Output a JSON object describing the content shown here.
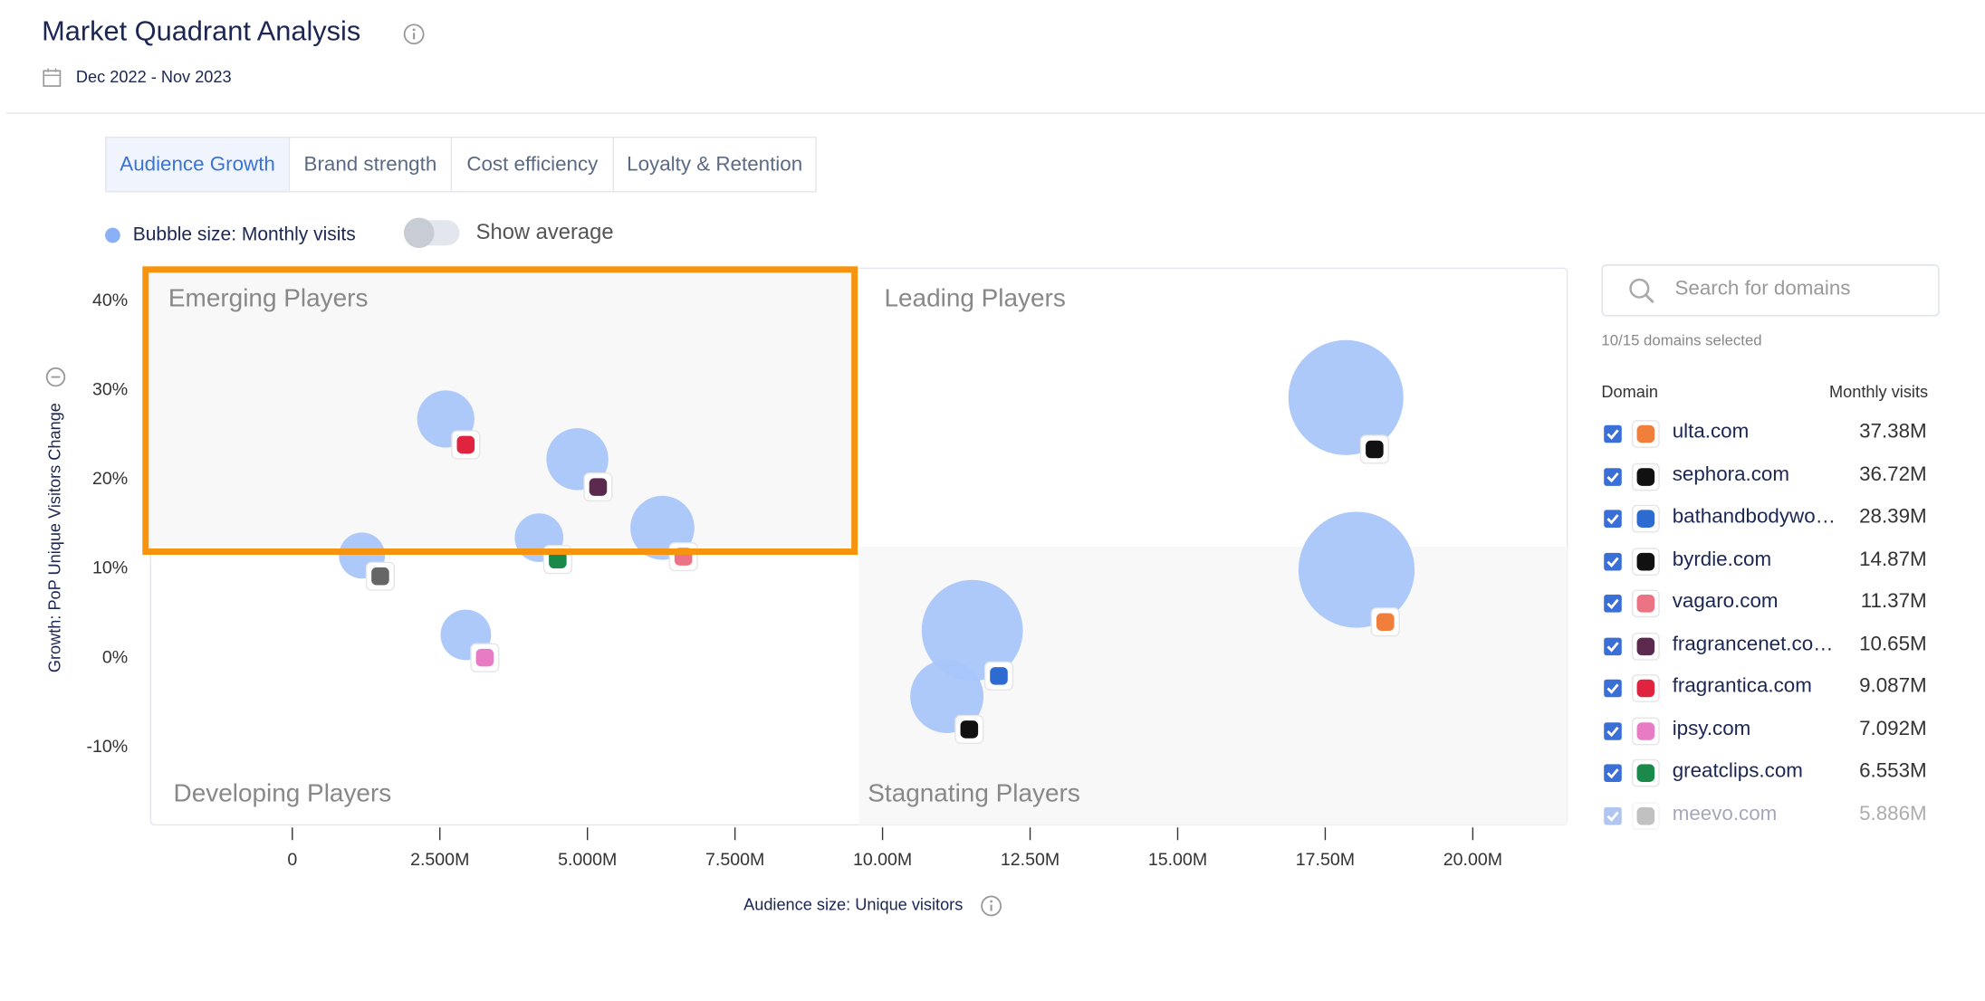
{
  "header": {
    "title": "Market Quadrant Analysis",
    "date_range": "Dec 2022 - Nov 2023"
  },
  "tabs": [
    "Audience Growth",
    "Brand strength",
    "Cost efficiency",
    "Loyalty & Retention"
  ],
  "legend": {
    "bubble": "Bubble size: Monthly visits",
    "toggle": "Show average"
  },
  "sidebar": {
    "search_placeholder": "Search for domains",
    "selection": "10/15 domains selected",
    "columns": [
      "Domain",
      "Monthly visits"
    ]
  },
  "chart_data": {
    "type": "bubble",
    "x_label": "Audience size: Unique visitors",
    "y_label": "Growth: PoP Unique Visitors Change",
    "color": "#a9c6fa",
    "xlim": [
      -2.4,
      21.6
    ],
    "ylim": [
      -18.7,
      43.7
    ],
    "xticks": [
      0,
      {
        "value": 2.5,
        "label": "2.500M"
      },
      {
        "value": 5,
        "label": "5.000M"
      },
      {
        "value": 7.5,
        "label": "7.500M"
      },
      {
        "value": 10,
        "label": "10.00M"
      },
      {
        "value": 12.5,
        "label": "12.50M"
      },
      {
        "value": 15,
        "label": "15.00M"
      },
      {
        "value": 17.5,
        "label": "17.50M"
      },
      {
        "value": 20,
        "label": "20.00M"
      }
    ],
    "yticks": [
      {
        "value": 40,
        "label": "40%"
      },
      {
        "value": 30,
        "label": "30%"
      },
      {
        "value": 20,
        "label": "20%"
      },
      {
        "value": 10,
        "label": "10%"
      },
      {
        "value": 0,
        "label": "0%"
      },
      {
        "value": -10,
        "label": "-10%"
      }
    ],
    "quadrant_x": 9.6,
    "quadrant_y": 12.5,
    "quadrants": [
      "Emerging Players",
      "Leading Players",
      "Developing Players",
      "Stagnating Players"
    ],
    "series": [
      {
        "name": "ulta.com",
        "icon_color": "#f07f3c",
        "x": [
          18.03
        ],
        "values": [
          9.9
        ],
        "sizes": [
          37.38
        ],
        "size_labels": [
          "37.38M"
        ]
      },
      {
        "name": "sephora.com",
        "icon_color": "#111111",
        "x": [
          17.85
        ],
        "values": [
          29.2
        ],
        "sizes": [
          36.72
        ],
        "size_labels": [
          "36.72M"
        ]
      },
      {
        "name": "bathandbodywo…",
        "icon_color": "#2d6bd1",
        "x": [
          11.52
        ],
        "values": [
          3.1
        ],
        "sizes": [
          28.39
        ],
        "size_labels": [
          "28.39M"
        ]
      },
      {
        "name": "byrdie.com",
        "icon_color": "#111111",
        "x": [
          11.09
        ],
        "values": [
          -4.3
        ],
        "sizes": [
          14.87
        ],
        "size_labels": [
          "14.87M"
        ]
      },
      {
        "name": "vagaro.com",
        "icon_color": "#ec7383",
        "x": [
          6.27
        ],
        "values": [
          14.6
        ],
        "sizes": [
          11.37
        ],
        "size_labels": [
          "11.37M"
        ]
      },
      {
        "name": "fragrancenet.co…",
        "icon_color": "#5c2a4f",
        "x": [
          4.83
        ],
        "values": [
          22.3
        ],
        "sizes": [
          10.65
        ],
        "size_labels": [
          "10.65M"
        ]
      },
      {
        "name": "fragrantica.com",
        "icon_color": "#e0243f",
        "x": [
          2.6
        ],
        "values": [
          26.8
        ],
        "sizes": [
          9.087
        ],
        "size_labels": [
          "9.087M"
        ]
      },
      {
        "name": "ipsy.com",
        "icon_color": "#e87bc4",
        "x": [
          2.94
        ],
        "values": [
          2.6
        ],
        "sizes": [
          7.092
        ],
        "size_labels": [
          "7.092M"
        ]
      },
      {
        "name": "greatclips.com",
        "icon_color": "#1a8a4a",
        "x": [
          4.18
        ],
        "values": [
          13.5
        ],
        "sizes": [
          6.553
        ],
        "size_labels": [
          "6.553M"
        ]
      },
      {
        "name": "meevo.com",
        "icon_color": "#666666",
        "x": [
          1.18
        ],
        "values": [
          11.5
        ],
        "sizes": [
          5.886
        ],
        "size_labels": [
          "5.886M"
        ]
      }
    ]
  }
}
